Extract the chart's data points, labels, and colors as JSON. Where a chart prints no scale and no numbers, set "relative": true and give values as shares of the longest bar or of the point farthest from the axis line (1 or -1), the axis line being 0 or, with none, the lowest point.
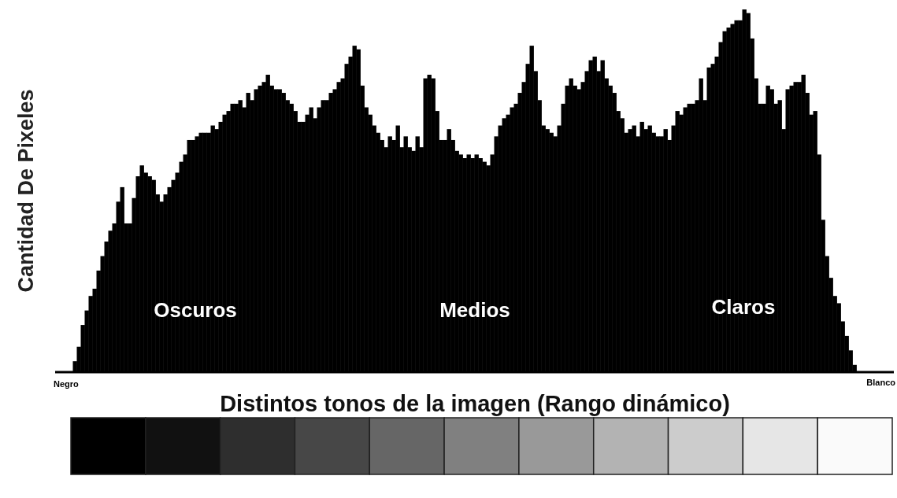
{
  "chart_data": {
    "type": "bar",
    "relative": true,
    "xlabel": "Distintos tonos de la imagen (Rango dinámico)",
    "ylabel": "Cantidad De Pixeles",
    "annotations": [
      "Oscuros",
      "Medios",
      "Claros",
      "Negro",
      "Blanco"
    ],
    "color": "#000000",
    "categories": [
      null,
      null,
      null,
      null,
      null,
      null,
      null,
      null,
      null,
      null,
      null,
      null,
      null,
      null,
      null,
      null,
      null,
      null,
      null,
      null,
      null,
      null,
      null,
      null,
      null,
      null,
      null,
      null,
      null,
      null,
      null,
      null,
      null,
      null,
      null,
      null,
      null,
      null,
      null,
      null,
      null,
      null,
      null,
      null,
      null,
      null,
      null,
      null,
      null,
      null,
      null,
      null,
      null,
      null,
      null,
      null,
      null,
      null,
      null,
      null,
      null,
      null,
      null,
      null,
      null,
      null,
      null,
      null,
      null,
      null,
      null,
      null,
      null,
      null,
      null,
      null,
      null,
      null,
      null,
      null,
      null,
      null,
      null,
      null,
      null,
      null,
      null,
      null,
      null,
      null,
      null,
      null,
      null,
      null,
      null,
      null,
      null,
      null,
      null,
      null,
      null,
      null,
      null,
      null,
      null,
      null,
      null,
      null,
      null,
      null,
      null,
      null,
      null,
      null,
      null,
      null,
      null,
      null,
      null,
      null,
      null,
      null,
      null,
      null,
      null,
      null,
      null,
      null,
      null,
      null,
      null,
      null,
      null,
      null,
      null,
      null,
      null,
      null,
      null,
      null,
      null,
      null,
      null,
      null,
      null,
      null,
      null,
      null,
      null,
      null,
      null,
      null,
      null,
      null,
      null,
      null,
      null,
      null,
      null,
      null,
      null,
      null,
      null,
      null,
      null,
      null,
      null,
      null,
      null,
      null,
      null,
      null,
      null,
      null,
      null,
      null,
      null,
      null,
      null,
      null,
      null,
      null,
      null,
      null,
      null,
      null,
      null,
      null,
      null,
      null,
      null,
      null,
      null,
      null,
      null,
      null,
      null,
      null,
      null
    ],
    "values": [
      0.03,
      0.07,
      0.13,
      0.17,
      0.21,
      0.23,
      0.28,
      0.32,
      0.36,
      0.39,
      0.41,
      0.47,
      0.51,
      0.41,
      0.41,
      0.48,
      0.54,
      0.57,
      0.55,
      0.54,
      0.53,
      0.49,
      0.47,
      0.49,
      0.51,
      0.53,
      0.55,
      0.58,
      0.6,
      0.64,
      0.64,
      0.65,
      0.66,
      0.66,
      0.66,
      0.68,
      0.67,
      0.69,
      0.71,
      0.72,
      0.74,
      0.74,
      0.75,
      0.73,
      0.77,
      0.75,
      0.78,
      0.79,
      0.8,
      0.82,
      0.79,
      0.78,
      0.78,
      0.77,
      0.75,
      0.74,
      0.72,
      0.69,
      0.69,
      0.71,
      0.73,
      0.7,
      0.73,
      0.75,
      0.75,
      0.77,
      0.78,
      0.8,
      0.81,
      0.85,
      0.87,
      0.9,
      0.89,
      0.79,
      0.73,
      0.71,
      0.68,
      0.66,
      0.64,
      0.62,
      0.65,
      0.64,
      0.68,
      0.62,
      0.65,
      0.62,
      0.61,
      0.65,
      0.62,
      0.81,
      0.82,
      0.81,
      0.72,
      0.64,
      0.64,
      0.67,
      0.64,
      0.61,
      0.6,
      0.59,
      0.6,
      0.59,
      0.6,
      0.59,
      0.58,
      0.57,
      0.6,
      0.65,
      0.68,
      0.7,
      0.71,
      0.73,
      0.74,
      0.77,
      0.8,
      0.85,
      0.9,
      0.83,
      0.75,
      0.68,
      0.67,
      0.66,
      0.65,
      0.68,
      0.74,
      0.79,
      0.81,
      0.79,
      0.78,
      0.8,
      0.83,
      0.86,
      0.87,
      0.83,
      0.86,
      0.81,
      0.79,
      0.77,
      0.72,
      0.7,
      0.66,
      0.67,
      0.68,
      0.65,
      0.69,
      0.67,
      0.68,
      0.66,
      0.65,
      0.65,
      0.67,
      0.64,
      0.68,
      0.72,
      0.71,
      0.73,
      0.74,
      0.74,
      0.75,
      0.81,
      0.75,
      0.84,
      0.85,
      0.87,
      0.91,
      0.94,
      0.95,
      0.96,
      0.97,
      0.97,
      1.0,
      0.99,
      0.92,
      0.81,
      0.74,
      0.74,
      0.79,
      0.78,
      0.74,
      0.75,
      0.67,
      0.78,
      0.79,
      0.8,
      0.8,
      0.82,
      0.77,
      0.71,
      0.72,
      0.6,
      0.42,
      0.32,
      0.26,
      0.21,
      0.19,
      0.14,
      0.1,
      0.06,
      0.02
    ]
  }
}
